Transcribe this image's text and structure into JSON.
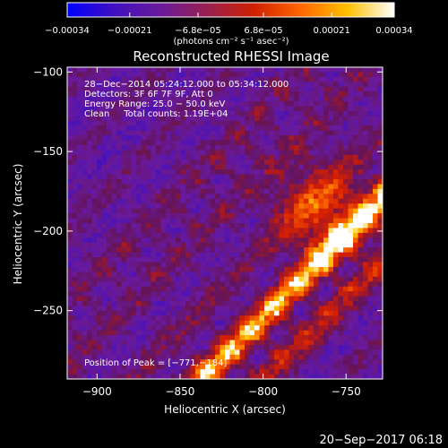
{
  "chart_data": {
    "type": "heatmap",
    "title": "Reconstructed RHESSI Image",
    "xlabel": "Heliocentric X (arcsec)",
    "ylabel": "Heliocentric Y (arcsec)",
    "xlim": [
      -918,
      -728
    ],
    "ylim": [
      -293,
      -97
    ],
    "xticks": [
      -900,
      -850,
      -800,
      -750
    ],
    "xtick_labels": [
      "−900",
      "−850",
      "−800",
      "−750"
    ],
    "yticks": [
      -100,
      -150,
      -200,
      -250
    ],
    "ytick_labels": [
      "−100",
      "−150",
      "−200",
      "−250"
    ],
    "colorbar": {
      "range": [
        -0.00034,
        0.00034
      ],
      "ticks": [
        -0.00034,
        -0.00021,
        -6.8e-05,
        6.8e-05,
        0.00021,
        0.00034
      ],
      "tick_labels": [
        "−0.00034",
        "−0.00021",
        "−6.8e−05",
        "6.8e−05",
        "0.00021",
        "0.00034"
      ],
      "unit_label": "(photons cm⁻² s⁻¹ asec⁻²)",
      "colors": [
        "#0000ff",
        "#4010c0",
        "#6a1a9a",
        "#9a2050",
        "#d02000",
        "#ff6600",
        "#ffc000",
        "#ffffff"
      ]
    },
    "annotations": [
      "28−Dec−2014 05:24:12.000 to 05:34:12.000",
      "Detectors: 3F 6F 7F 9F, Att 0",
      "Energy Range: 25.0 − 50.0 keV",
      "Clean     Total counts: 1.19E+04"
    ],
    "peak_label": "Position of Peak = [−771,−184]",
    "peak": [
      -771,
      -184
    ]
  },
  "footer": {
    "timestamp": "20−Sep−2017 06:18"
  }
}
